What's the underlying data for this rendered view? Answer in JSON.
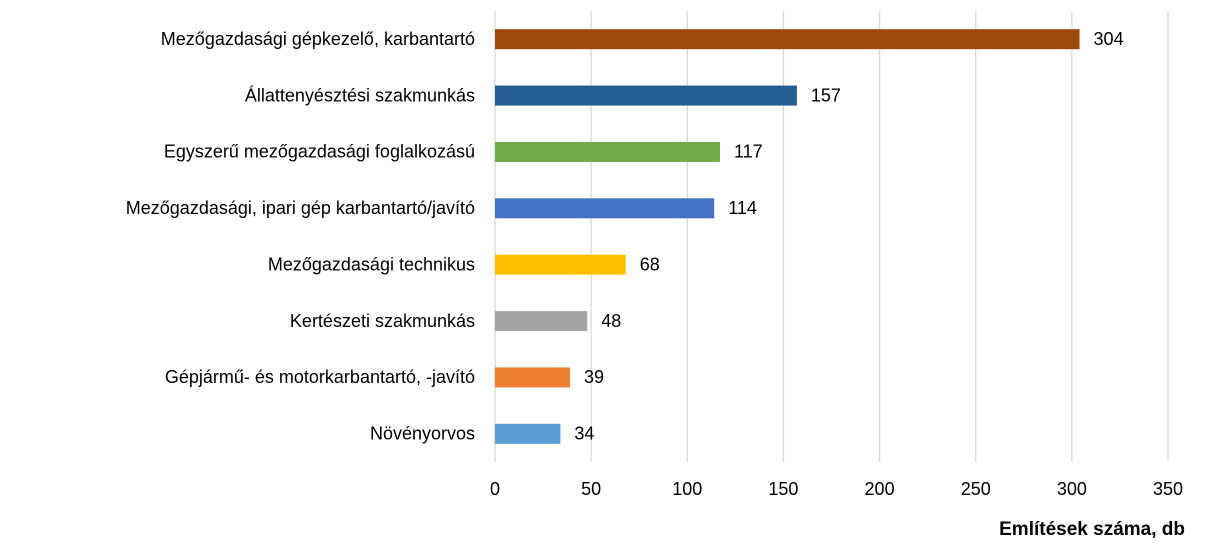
{
  "chart_data": {
    "type": "bar",
    "orientation": "horizontal",
    "x_label": "Említések száma, db",
    "categories": [
      "Mezőgazdasági gépkezelő, karbantartó",
      "Állattenyésztési szakmunkás",
      "Egyszerű mezőgazdasági foglalkozású",
      "Mezőgazdasági, ipari gép karbantartó/javító",
      "Mezőgazdasági technikus",
      "Kertészeti szakmunkás",
      "Gépjármű- és motorkarbantartó, -javító",
      "Növényorvos"
    ],
    "values": [
      304,
      157,
      117,
      114,
      68,
      48,
      39,
      34
    ],
    "colors": [
      "#9e480e",
      "#255e91",
      "#70ad47",
      "#4472c4",
      "#ffc000",
      "#a5a5a5",
      "#ed7d31",
      "#5b9bd5"
    ],
    "xlim": [
      0,
      350
    ],
    "xticks": [
      0,
      50,
      100,
      150,
      200,
      250,
      300,
      350
    ],
    "grid": true
  }
}
